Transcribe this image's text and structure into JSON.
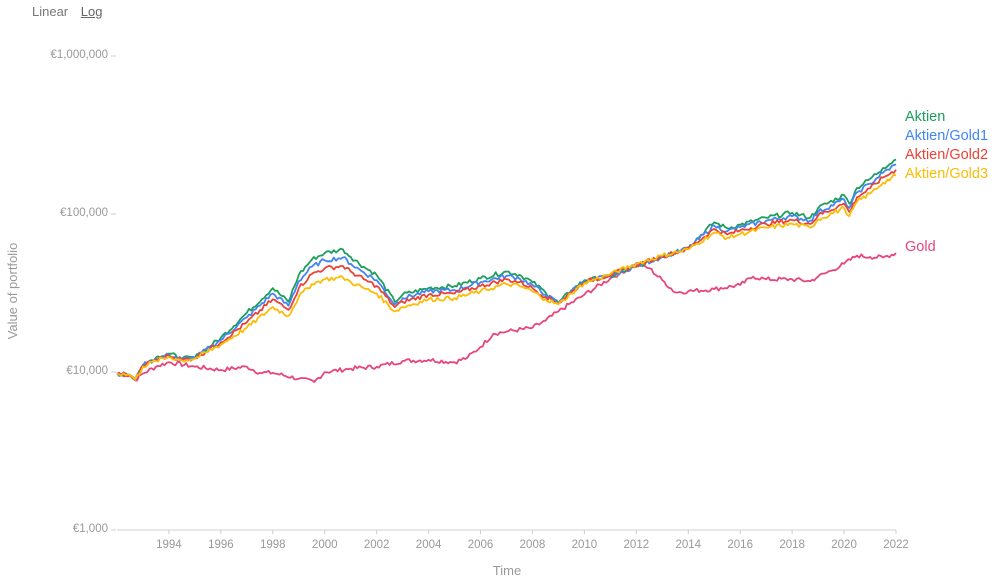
{
  "scale_toggle": {
    "linear_label": "Linear",
    "log_label": "Log",
    "selected": "Log"
  },
  "chart_data": {
    "type": "line",
    "title": "",
    "xlabel": "Time",
    "ylabel": "Value of portfolio",
    "y_scale": "log",
    "ylim": [
      1000,
      1000000
    ],
    "xlim": [
      1992.0,
      2022.0
    ],
    "x_ticks": [
      1994,
      1996,
      1998,
      2000,
      2002,
      2004,
      2006,
      2008,
      2010,
      2012,
      2014,
      2016,
      2018,
      2020,
      2022
    ],
    "y_ticks": [
      1000,
      10000,
      100000,
      1000000
    ],
    "y_tick_labels": [
      "€1,000",
      "€10,000",
      "€100,000",
      "€1,000,000"
    ],
    "grid": false,
    "legend": "series labels at right end of lines",
    "series": [
      {
        "name": "Gold",
        "color": "#e8457c",
        "x": [
          1992.0,
          1992.5,
          1992.7,
          1993.0,
          1993.5,
          1994.0,
          1995.0,
          1996.0,
          1997.0,
          1997.5,
          1998.0,
          1999.0,
          1999.6,
          2000.0,
          2001.0,
          2002.0,
          2003.0,
          2004.0,
          2005.0,
          2005.5,
          2006.0,
          2006.5,
          2007.0,
          2008.0,
          2008.5,
          2009.0,
          2010.0,
          2011.0,
          2011.7,
          2012.0,
          2012.5,
          2013.0,
          2013.5,
          2014.0,
          2015.0,
          2016.0,
          2016.5,
          2017.0,
          2018.0,
          2018.7,
          2019.0,
          2019.5,
          2020.0,
          2020.5,
          2021.0,
          2021.5,
          2022.0
        ],
        "values": [
          9500,
          9200,
          8600,
          9500,
          10500,
          11200,
          10500,
          10000,
          10500,
          9600,
          9600,
          8800,
          8400,
          9700,
          10200,
          10500,
          11400,
          11600,
          11200,
          12000,
          14000,
          17000,
          17500,
          18500,
          20500,
          23500,
          30000,
          38000,
          44000,
          47500,
          44000,
          37000,
          31000,
          31500,
          32500,
          34500,
          39000,
          37500,
          37500,
          36500,
          39000,
          42500,
          47000,
          53000,
          52000,
          51500,
          55000
        ]
      },
      {
        "name": "Aktien",
        "color": "#1e9e5a",
        "x": [
          1992.0,
          1992.5,
          1992.7,
          1993.0,
          1993.5,
          1994.0,
          1994.5,
          1995.0,
          1996.0,
          1997.0,
          1998.0,
          1998.6,
          1999.0,
          1999.5,
          2000.0,
          2000.7,
          2001.0,
          2001.5,
          2002.0,
          2002.7,
          2003.0,
          2004.0,
          2005.0,
          2006.0,
          2007.0,
          2007.5,
          2008.0,
          2008.5,
          2009.0,
          2009.5,
          2010.0,
          2011.0,
          2012.0,
          2013.0,
          2014.0,
          2015.0,
          2015.5,
          2016.0,
          2017.0,
          2018.0,
          2018.7,
          2019.0,
          2020.0,
          2020.2,
          2020.5,
          2021.0,
          2021.5,
          2022.0
        ],
        "values": [
          9500,
          9300,
          8700,
          10800,
          12000,
          12700,
          11800,
          12000,
          16000,
          23000,
          33000,
          27000,
          40000,
          50000,
          55000,
          58000,
          52000,
          45000,
          40000,
          27000,
          30000,
          33000,
          34000,
          38000,
          42000,
          40000,
          36000,
          31000,
          26500,
          32000,
          37000,
          39000,
          45000,
          52000,
          60000,
          86000,
          79000,
          83000,
          92000,
          99000,
          92000,
          106000,
          128000,
          113000,
          142000,
          162000,
          190000,
          215000
        ]
      },
      {
        "name": "Aktien/Gold1",
        "color": "#4285f4",
        "x": [
          1992.0,
          1992.5,
          1992.7,
          1993.0,
          1993.5,
          1994.0,
          1994.5,
          1995.0,
          1996.0,
          1997.0,
          1998.0,
          1998.6,
          1999.0,
          1999.5,
          2000.0,
          2000.7,
          2001.0,
          2001.5,
          2002.0,
          2002.7,
          2003.0,
          2004.0,
          2005.0,
          2006.0,
          2007.0,
          2007.5,
          2008.0,
          2008.5,
          2009.0,
          2009.5,
          2010.0,
          2011.0,
          2012.0,
          2013.0,
          2014.0,
          2015.0,
          2015.5,
          2016.0,
          2017.0,
          2018.0,
          2018.7,
          2019.0,
          2020.0,
          2020.2,
          2020.5,
          2021.0,
          2021.5,
          2022.0
        ],
        "values": [
          9500,
          9300,
          8700,
          10700,
          11800,
          12500,
          11700,
          12000,
          15500,
          21500,
          30500,
          25500,
          36500,
          45000,
          49500,
          51500,
          47000,
          41500,
          37000,
          26000,
          28500,
          31500,
          32000,
          36000,
          39500,
          38000,
          34500,
          30000,
          26500,
          31500,
          36500,
          39500,
          45500,
          52000,
          59000,
          82000,
          75500,
          80000,
          88000,
          94000,
          88000,
          100000,
          120000,
          106000,
          133000,
          151000,
          177000,
          200000
        ]
      },
      {
        "name": "Aktien/Gold2",
        "color": "#ea4335",
        "x": [
          1992.0,
          1992.5,
          1992.7,
          1993.0,
          1993.5,
          1994.0,
          1994.5,
          1995.0,
          1996.0,
          1997.0,
          1998.0,
          1998.6,
          1999.0,
          1999.5,
          2000.0,
          2000.7,
          2001.0,
          2001.5,
          2002.0,
          2002.7,
          2003.0,
          2004.0,
          2005.0,
          2006.0,
          2007.0,
          2007.5,
          2008.0,
          2008.5,
          2009.0,
          2009.5,
          2010.0,
          2011.0,
          2012.0,
          2013.0,
          2014.0,
          2015.0,
          2015.5,
          2016.0,
          2017.0,
          2018.0,
          2018.7,
          2019.0,
          2020.0,
          2020.2,
          2020.5,
          2021.0,
          2021.5,
          2022.0
        ],
        "values": [
          9500,
          9300,
          8700,
          10600,
          11600,
          12300,
          11600,
          11900,
          15000,
          20000,
          28000,
          24000,
          33000,
          40500,
          44000,
          45500,
          42000,
          37500,
          34000,
          25000,
          27000,
          30000,
          30500,
          34000,
          37500,
          36000,
          33000,
          29000,
          26500,
          31000,
          36000,
          40000,
          46000,
          52500,
          58500,
          78000,
          72000,
          76500,
          84000,
          89000,
          84000,
          95000,
          113000,
          100000,
          124000,
          141000,
          165000,
          185000
        ]
      },
      {
        "name": "Aktien/Gold3",
        "color": "#fbbc04",
        "x": [
          1992.0,
          1992.5,
          1992.7,
          1993.0,
          1993.5,
          1994.0,
          1994.5,
          1995.0,
          1996.0,
          1997.0,
          1998.0,
          1998.6,
          1999.0,
          1999.5,
          2000.0,
          2000.7,
          2001.0,
          2001.5,
          2002.0,
          2002.7,
          2003.0,
          2004.0,
          2005.0,
          2006.0,
          2007.0,
          2007.5,
          2008.0,
          2008.5,
          2009.0,
          2009.5,
          2010.0,
          2011.0,
          2012.0,
          2013.0,
          2014.0,
          2015.0,
          2015.5,
          2016.0,
          2017.0,
          2018.0,
          2018.7,
          2019.0,
          2020.0,
          2020.2,
          2020.5,
          2021.0,
          2021.5,
          2022.0
        ],
        "values": [
          9500,
          9300,
          8700,
          10500,
          11400,
          12100,
          11500,
          11800,
          14500,
          18500,
          25000,
          22000,
          29000,
          35000,
          37500,
          38500,
          36000,
          33000,
          30500,
          23500,
          25000,
          28000,
          28500,
          31500,
          35000,
          34000,
          31500,
          28000,
          26000,
          30500,
          35500,
          40500,
          47000,
          53000,
          58000,
          74000,
          68500,
          72500,
          79500,
          84000,
          79500,
          89500,
          106000,
          94000,
          116000,
          131000,
          153000,
          170000
        ]
      }
    ]
  }
}
